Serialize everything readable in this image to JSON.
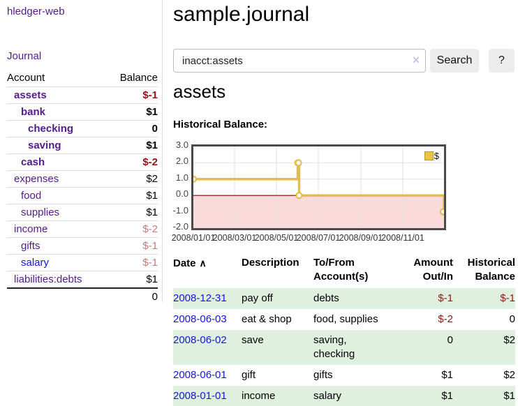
{
  "sidebar": {
    "app_title": "hledger-web",
    "journal_link": "Journal",
    "accounts_table": {
      "account_header": "Account",
      "balance_header": "Balance",
      "rows": [
        {
          "name": "assets",
          "indent": 1,
          "balance": "$-1",
          "bold": true,
          "negative": "strong"
        },
        {
          "name": "bank",
          "indent": 2,
          "balance": "$1",
          "bold": true
        },
        {
          "name": "checking",
          "indent": 3,
          "balance": "0",
          "bold": true
        },
        {
          "name": "saving",
          "indent": 3,
          "balance": "$1",
          "bold": true
        },
        {
          "name": "cash",
          "indent": 2,
          "balance": "$-2",
          "bold": true,
          "negative": "strong"
        },
        {
          "name": "expenses",
          "indent": 1,
          "balance": "$2"
        },
        {
          "name": "food",
          "indent": 2,
          "balance": "$1"
        },
        {
          "name": "supplies",
          "indent": 2,
          "balance": "$1"
        },
        {
          "name": "income",
          "indent": 1,
          "balance": "$-2",
          "negative": "soft"
        },
        {
          "name": "gifts",
          "indent": 2,
          "balance": "$-1",
          "negative": "soft"
        },
        {
          "name": "salary",
          "indent": 2,
          "balance": "$-1",
          "negative": "soft",
          "link_color": "blue"
        },
        {
          "name": "liabilities:debts",
          "indent": 1,
          "balance": "$1"
        }
      ],
      "total": "0"
    }
  },
  "header": {
    "title": "sample.journal"
  },
  "search": {
    "value": "inacct:assets",
    "clear_icon": "×",
    "search_label": "Search",
    "help_label": "?"
  },
  "main": {
    "account_heading": "assets",
    "chart_label": "Historical Balance:"
  },
  "chart_data": {
    "type": "line",
    "step": true,
    "title": "Historical Balance",
    "legend": {
      "label": "$",
      "position": "top-right"
    },
    "series": [
      {
        "name": "$",
        "color": "#e3bd4e",
        "points": [
          {
            "date": "2008/01/01",
            "value": 1
          },
          {
            "date": "2008/06/01",
            "value": 2
          },
          {
            "date": "2008/06/02",
            "value": 2
          },
          {
            "date": "2008/06/03",
            "value": 0
          },
          {
            "date": "2008/12/31",
            "value": -1
          }
        ]
      }
    ],
    "xrange": [
      "2008/01/01",
      "2008/12/31"
    ],
    "xticks": [
      "2008/01/01",
      "2008/03/01",
      "2008/05/01",
      "2008/07/01",
      "2008/09/01",
      "2008/11/01"
    ],
    "ylim": [
      -2,
      3
    ],
    "yticks": [
      "3.0",
      "2.0",
      "1.0",
      "0.0",
      "-1.0",
      "-2.0"
    ],
    "grid": true,
    "zero_line_color": "#8b0000",
    "negative_region_color": "#fbdada",
    "gridline_color": "#e2e2e2"
  },
  "transactions": {
    "date_header": "Date",
    "sort_icon": "∧",
    "description_header": "Description",
    "accounts_header": "To/From\nAccount(s)",
    "amount_header": "Amount\nOut/In",
    "balance_header": "Historical\nBalance",
    "rows": [
      {
        "date": "2008-12-31",
        "description": "pay off",
        "accounts": "debts",
        "amount": "$-1",
        "balance": "$-1",
        "amount_negative": true,
        "balance_negative": true
      },
      {
        "date": "2008-06-03",
        "description": "eat & shop",
        "accounts": "food, supplies",
        "amount": "$-2",
        "balance": "0",
        "amount_negative": true
      },
      {
        "date": "2008-06-02",
        "description": "save",
        "accounts": "saving,\nchecking",
        "amount": "0",
        "balance": "$2"
      },
      {
        "date": "2008-06-01",
        "description": "gift",
        "accounts": "gifts",
        "amount": "$1",
        "balance": "$2"
      },
      {
        "date": "2008-01-01",
        "description": "income",
        "accounts": "salary",
        "amount": "$1",
        "balance": "$1"
      }
    ]
  }
}
